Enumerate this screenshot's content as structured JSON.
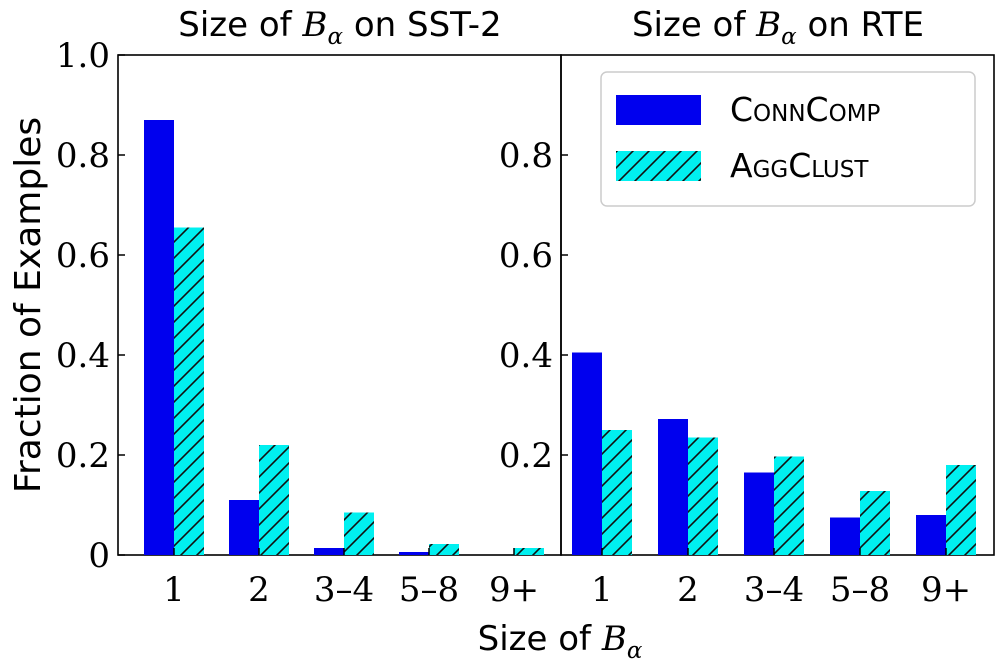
{
  "chart_data": [
    {
      "type": "bar",
      "title_prefix": "Size of ",
      "title_var": "B",
      "title_sub": "α",
      "title_suffix": " on SST-2",
      "categories": [
        "1",
        "2",
        "3–4",
        "5–8",
        "9+"
      ],
      "ylim": [
        0,
        1.0
      ],
      "yticks": [
        "0",
        "0.2",
        "0.4",
        "0.6",
        "0.8",
        "1.0"
      ],
      "ylabel": "Fraction of Examples",
      "series": [
        {
          "name": "ConnComp",
          "values": [
            0.87,
            0.11,
            0.014,
            0.006,
            0.0
          ]
        },
        {
          "name": "AggClust",
          "values": [
            0.655,
            0.22,
            0.085,
            0.022,
            0.014
          ]
        }
      ]
    },
    {
      "type": "bar",
      "title_prefix": "Size of ",
      "title_var": "B",
      "title_sub": "α",
      "title_suffix": " on RTE",
      "categories": [
        "1",
        "2",
        "3–4",
        "5–8",
        "9+"
      ],
      "ylim": [
        0,
        1.0
      ],
      "yticks": [
        "0.2",
        "0.4",
        "0.6",
        "0.8"
      ],
      "series": [
        {
          "name": "ConnComp",
          "values": [
            0.405,
            0.272,
            0.165,
            0.075,
            0.08
          ]
        },
        {
          "name": "AggClust",
          "values": [
            0.25,
            0.235,
            0.197,
            0.128,
            0.18
          ]
        }
      ]
    }
  ],
  "xlabel_prefix": "Size of ",
  "xlabel_var": "B",
  "xlabel_sub": "α",
  "legend": {
    "placement": "top-right of right panel",
    "entries": [
      {
        "label": "ConnComp",
        "color": "#0000ee",
        "hatch": false
      },
      {
        "label": "AggClust",
        "color": "#00f0f0",
        "hatch": true
      }
    ]
  }
}
